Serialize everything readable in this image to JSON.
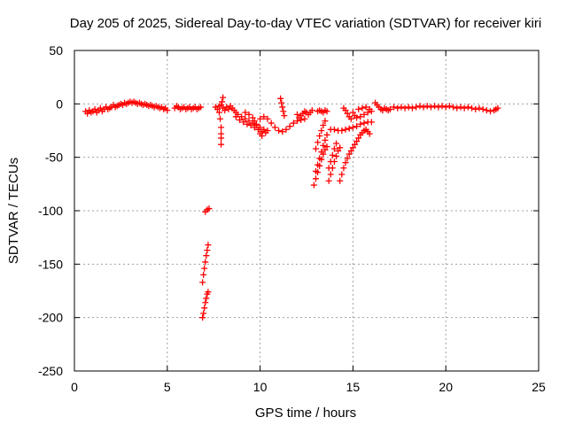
{
  "chart_data": {
    "type": "scatter",
    "title": "Day 205 of 2025, Sidereal Day-to-day VTEC variation (SDTVAR) for receiver kiri",
    "xlabel": "GPS time / hours",
    "ylabel": "SDTVAR / TECUs",
    "xlim": [
      0,
      25
    ],
    "ylim": [
      -250,
      50
    ],
    "xticks": [
      0,
      5,
      10,
      15,
      20,
      25
    ],
    "yticks": [
      50,
      0,
      -50,
      -100,
      -150,
      -200,
      -250
    ],
    "xtick_labels": [
      "0",
      "5",
      "10",
      "15",
      "20",
      "25"
    ],
    "ytick_labels": [
      "50",
      "0",
      "-50",
      "-100",
      "-150",
      "-200",
      "-250"
    ],
    "grid": true,
    "marker": "plus",
    "color": "#ff0000",
    "series": [
      {
        "points": [
          [
            0.6,
            -7
          ],
          [
            0.7,
            -9
          ],
          [
            0.8,
            -6
          ],
          [
            0.9,
            -8
          ],
          [
            1.0,
            -7
          ],
          [
            1.1,
            -5
          ],
          [
            1.2,
            -8
          ],
          [
            1.3,
            -6
          ],
          [
            1.4,
            -4
          ],
          [
            1.5,
            -7
          ],
          [
            1.6,
            -5
          ],
          [
            1.7,
            -3
          ],
          [
            1.8,
            -5
          ],
          [
            1.9,
            -4
          ],
          [
            2.0,
            -3
          ],
          [
            2.1,
            -1
          ],
          [
            2.2,
            -3
          ],
          [
            2.3,
            -2
          ],
          [
            2.4,
            -1
          ],
          [
            2.5,
            0
          ],
          [
            2.6,
            -1
          ],
          [
            2.7,
            1
          ],
          [
            2.8,
            0
          ],
          [
            2.9,
            1
          ],
          [
            3.0,
            2
          ],
          [
            3.1,
            1
          ],
          [
            3.2,
            2
          ],
          [
            3.3,
            1
          ],
          [
            3.4,
            0
          ],
          [
            3.5,
            1
          ],
          [
            3.6,
            0
          ],
          [
            3.7,
            -1
          ],
          [
            3.8,
            0
          ],
          [
            3.9,
            -1
          ],
          [
            4.0,
            -2
          ],
          [
            4.1,
            -1
          ],
          [
            4.2,
            -2
          ],
          [
            4.3,
            -3
          ],
          [
            4.4,
            -2
          ],
          [
            4.5,
            -3
          ],
          [
            4.6,
            -4
          ],
          [
            4.7,
            -3
          ],
          [
            4.8,
            -5
          ],
          [
            4.9,
            -4
          ],
          [
            5.0,
            -6
          ],
          [
            5.4,
            -4
          ],
          [
            5.5,
            -2
          ],
          [
            5.6,
            -3
          ],
          [
            5.7,
            -5
          ],
          [
            5.8,
            -4
          ],
          [
            5.9,
            -3
          ],
          [
            6.0,
            -5
          ],
          [
            6.1,
            -4
          ],
          [
            6.2,
            -3
          ],
          [
            6.3,
            -5
          ],
          [
            6.4,
            -4
          ],
          [
            6.5,
            -3
          ],
          [
            6.6,
            -5
          ],
          [
            6.7,
            -4
          ],
          [
            6.8,
            -3
          ],
          [
            7.05,
            -101
          ],
          [
            7.15,
            -99
          ],
          [
            7.25,
            -98
          ],
          [
            6.9,
            -200
          ],
          [
            6.95,
            -196
          ],
          [
            7.0,
            -191
          ],
          [
            7.05,
            -186
          ],
          [
            7.1,
            -182
          ],
          [
            7.15,
            -178
          ],
          [
            7.2,
            -176
          ],
          [
            6.9,
            -167
          ],
          [
            6.95,
            -160
          ],
          [
            7.0,
            -154
          ],
          [
            7.05,
            -148
          ],
          [
            7.1,
            -142
          ],
          [
            7.15,
            -137
          ],
          [
            7.2,
            -132
          ],
          [
            7.6,
            -3
          ],
          [
            7.7,
            -5
          ],
          [
            7.8,
            -2
          ],
          [
            7.9,
            -1
          ],
          [
            8.0,
            -4
          ],
          [
            8.1,
            -6
          ],
          [
            8.2,
            -3
          ],
          [
            8.3,
            -5
          ],
          [
            8.4,
            -2
          ],
          [
            8.5,
            -4
          ],
          [
            8.6,
            -6
          ],
          [
            8.7,
            -8
          ],
          [
            8.8,
            -10
          ],
          [
            7.9,
            -22
          ],
          [
            7.9,
            -28
          ],
          [
            7.9,
            -32
          ],
          [
            7.9,
            -38
          ],
          [
            7.8,
            -8
          ],
          [
            7.85,
            -14
          ],
          [
            8.0,
            6
          ],
          [
            7.95,
            2
          ],
          [
            8.7,
            -12
          ],
          [
            8.9,
            -15
          ],
          [
            9.1,
            -17
          ],
          [
            9.3,
            -19
          ],
          [
            9.5,
            -20
          ],
          [
            9.7,
            -22
          ],
          [
            9.9,
            -24
          ],
          [
            10.1,
            -26
          ],
          [
            10.3,
            -27
          ],
          [
            9.0,
            -12
          ],
          [
            9.2,
            -14
          ],
          [
            9.4,
            -16
          ],
          [
            9.6,
            -18
          ],
          [
            9.8,
            -19
          ],
          [
            10.0,
            -22
          ],
          [
            10.2,
            -24
          ],
          [
            10.4,
            -25
          ],
          [
            9.2,
            -8
          ],
          [
            9.4,
            -10
          ],
          [
            9.6,
            -13
          ],
          [
            9.7,
            -16
          ],
          [
            9.8,
            -20
          ],
          [
            9.9,
            -24
          ],
          [
            10.0,
            -28
          ],
          [
            10.1,
            -30
          ],
          [
            10.0,
            -14
          ],
          [
            10.2,
            -12
          ],
          [
            10.4,
            -14
          ],
          [
            10.6,
            -18
          ],
          [
            10.8,
            -22
          ],
          [
            11.0,
            -25
          ],
          [
            11.2,
            -26
          ],
          [
            11.4,
            -24
          ],
          [
            11.6,
            -21
          ],
          [
            11.8,
            -18
          ],
          [
            12.0,
            -16
          ],
          [
            12.2,
            -15
          ],
          [
            12.4,
            -14
          ],
          [
            11.1,
            5
          ],
          [
            11.15,
            1
          ],
          [
            11.2,
            -3
          ],
          [
            11.25,
            -7
          ],
          [
            11.3,
            -11
          ],
          [
            12.0,
            -10
          ],
          [
            12.1,
            -13
          ],
          [
            12.2,
            -11
          ],
          [
            12.3,
            -9
          ],
          [
            12.4,
            -7
          ],
          [
            12.5,
            -8
          ],
          [
            12.6,
            -10
          ],
          [
            12.7,
            -8
          ],
          [
            12.8,
            -6
          ],
          [
            13.1,
            -7
          ],
          [
            13.2,
            -6
          ],
          [
            13.3,
            -7
          ],
          [
            13.4,
            -8
          ],
          [
            13.5,
            -6
          ],
          [
            13.6,
            -7
          ],
          [
            12.9,
            -76
          ],
          [
            13.0,
            -70
          ],
          [
            13.1,
            -64
          ],
          [
            13.2,
            -58
          ],
          [
            13.3,
            -52
          ],
          [
            13.4,
            -47
          ],
          [
            13.5,
            -43
          ],
          [
            13.6,
            -40
          ],
          [
            13.0,
            -63
          ],
          [
            13.1,
            -57
          ],
          [
            13.2,
            -51
          ],
          [
            13.3,
            -45
          ],
          [
            13.4,
            -39
          ],
          [
            13.5,
            -34
          ],
          [
            13.6,
            -29
          ],
          [
            13.0,
            -42
          ],
          [
            13.1,
            -36
          ],
          [
            13.2,
            -30
          ],
          [
            13.3,
            -25
          ],
          [
            13.4,
            -20
          ],
          [
            13.5,
            -16
          ],
          [
            13.8,
            -24
          ],
          [
            14.0,
            -24
          ],
          [
            14.2,
            -25
          ],
          [
            14.4,
            -25
          ],
          [
            14.6,
            -24
          ],
          [
            14.8,
            -23
          ],
          [
            15.0,
            -22
          ],
          [
            15.2,
            -21
          ],
          [
            15.4,
            -19
          ],
          [
            15.6,
            -18
          ],
          [
            15.8,
            -17
          ],
          [
            16.0,
            -17
          ],
          [
            13.7,
            -72
          ],
          [
            13.8,
            -66
          ],
          [
            13.9,
            -60
          ],
          [
            14.0,
            -54
          ],
          [
            14.1,
            -49
          ],
          [
            14.2,
            -44
          ],
          [
            14.3,
            -41
          ],
          [
            13.7,
            -60
          ],
          [
            13.8,
            -54
          ],
          [
            13.9,
            -48
          ],
          [
            14.0,
            -42
          ],
          [
            14.1,
            -37
          ],
          [
            14.3,
            -72
          ],
          [
            14.4,
            -66
          ],
          [
            14.5,
            -60
          ],
          [
            14.6,
            -55
          ],
          [
            14.7,
            -51
          ],
          [
            14.8,
            -47
          ],
          [
            14.9,
            -44
          ],
          [
            15.0,
            -41
          ],
          [
            15.1,
            -38
          ],
          [
            15.2,
            -35
          ],
          [
            15.3,
            -32
          ],
          [
            15.4,
            -29
          ],
          [
            15.5,
            -27
          ],
          [
            15.6,
            -25
          ],
          [
            15.7,
            -24
          ],
          [
            15.8,
            -26
          ],
          [
            15.9,
            -28
          ],
          [
            14.5,
            -4
          ],
          [
            14.6,
            -6
          ],
          [
            14.7,
            -9
          ],
          [
            14.8,
            -12
          ],
          [
            14.9,
            -14
          ],
          [
            15.0,
            -8
          ],
          [
            15.1,
            -11
          ],
          [
            15.2,
            -13
          ],
          [
            15.4,
            -12
          ],
          [
            15.6,
            -10
          ],
          [
            15.8,
            -8
          ],
          [
            16.0,
            -7
          ],
          [
            15.3,
            -5
          ],
          [
            15.5,
            -4
          ],
          [
            15.7,
            -3
          ],
          [
            15.9,
            -5
          ],
          [
            16.2,
            1
          ],
          [
            16.3,
            -1
          ],
          [
            16.4,
            -3
          ],
          [
            16.5,
            -5
          ],
          [
            16.6,
            -6
          ],
          [
            16.7,
            -4
          ],
          [
            16.8,
            -5
          ],
          [
            16.9,
            -6
          ],
          [
            17.0,
            -5
          ],
          [
            17.2,
            -3
          ],
          [
            17.4,
            -4
          ],
          [
            17.6,
            -3
          ],
          [
            17.8,
            -4
          ],
          [
            18.0,
            -3
          ],
          [
            18.2,
            -4
          ],
          [
            18.4,
            -3
          ],
          [
            18.6,
            -2
          ],
          [
            18.8,
            -3
          ],
          [
            19.0,
            -2
          ],
          [
            19.2,
            -3
          ],
          [
            19.4,
            -2
          ],
          [
            19.6,
            -3
          ],
          [
            19.8,
            -2
          ],
          [
            20.0,
            -3
          ],
          [
            20.2,
            -2
          ],
          [
            20.4,
            -3
          ],
          [
            20.6,
            -4
          ],
          [
            20.8,
            -3
          ],
          [
            21.0,
            -4
          ],
          [
            21.2,
            -3
          ],
          [
            21.4,
            -4
          ],
          [
            21.6,
            -5
          ],
          [
            21.8,
            -4
          ],
          [
            22.0,
            -5
          ],
          [
            22.2,
            -6
          ],
          [
            22.4,
            -7
          ],
          [
            22.6,
            -6
          ],
          [
            22.7,
            -5
          ],
          [
            22.8,
            -4
          ]
        ]
      }
    ]
  }
}
